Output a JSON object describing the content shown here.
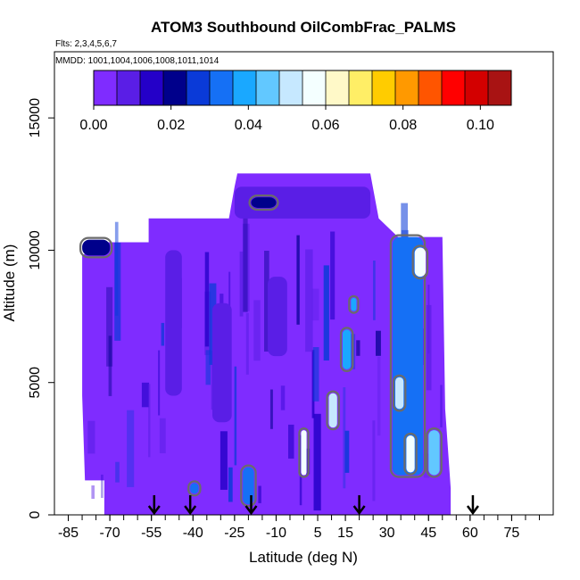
{
  "chart_data": {
    "type": "heatmap",
    "title": "ATOM3 Southbound OilCombFrac_PALMS",
    "flights_label": "Flts: 2,3,4,5,6,7",
    "dates_label": "MMDD: 1001,1004,1006,1008,1011,1014",
    "xlabel": "Latitude (deg N)",
    "ylabel": "Altitude (m)",
    "xlim": [
      -90,
      90
    ],
    "ylim": [
      0,
      17500
    ],
    "xticks": [
      -85,
      -70,
      -55,
      -40,
      -25,
      -10,
      5,
      15,
      30,
      45,
      60,
      75
    ],
    "xtick_labels": [
      "-85",
      "-70",
      "-55",
      "-40",
      "-25",
      "-10",
      "5",
      "15",
      "30",
      "45",
      "60",
      "75"
    ],
    "yticks": [
      0,
      5000,
      10000,
      15000
    ],
    "ytick_labels": [
      "0",
      "5000",
      "10000",
      "15000"
    ],
    "colorbar": {
      "range": [
        0,
        0.108
      ],
      "ticks": [
        0.0,
        0.02,
        0.04,
        0.06,
        0.08,
        0.1
      ],
      "tick_labels": [
        "0.00",
        "0.02",
        "0.04",
        "0.06",
        "0.08",
        "0.10"
      ],
      "colors": [
        "#7f2cff",
        "#5a1ee6",
        "#2400c8",
        "#00008b",
        "#0a3ad8",
        "#1570f5",
        "#1aa8ff",
        "#62c8ff",
        "#c6e8ff",
        "#f4ffff",
        "#fff9c8",
        "#ffee66",
        "#ffcc00",
        "#ff9900",
        "#ff5500",
        "#ff0000",
        "#d30000",
        "#a81313"
      ]
    },
    "flight_markers_lat": [
      -54,
      -41,
      -19,
      20,
      61
    ],
    "background_value": 0.0,
    "data_regions": [
      {
        "name": "upper band",
        "lat": [
          -25,
          24
        ],
        "alt": [
          11200,
          12400
        ],
        "value": 0.008
      },
      {
        "name": "upper core",
        "lat": [
          -19,
          -10
        ],
        "alt": [
          11600,
          12000
        ],
        "value": 0.02
      },
      {
        "name": "mid west patch",
        "lat": [
          -80,
          -70
        ],
        "alt": [
          9800,
          10400
        ],
        "value": 0.02
      },
      {
        "name": "column 1",
        "lat": [
          -50,
          -44
        ],
        "alt": [
          4500,
          10000
        ],
        "value": 0.01
      },
      {
        "name": "column 2",
        "lat": [
          -33,
          -26
        ],
        "alt": [
          3500,
          8000
        ],
        "value": 0.009
      },
      {
        "name": "column 3",
        "lat": [
          -13,
          -6
        ],
        "alt": [
          6000,
          9000
        ],
        "value": 0.01
      },
      {
        "name": "low blob 1",
        "lat": [
          -41,
          -38
        ],
        "alt": [
          800,
          1200
        ],
        "value": 0.03
      },
      {
        "name": "low blob 2",
        "lat": [
          -22,
          -18
        ],
        "alt": [
          400,
          1800
        ],
        "value": 0.032
      },
      {
        "name": "plume 1",
        "lat": [
          -1,
          1
        ],
        "alt": [
          1500,
          3200
        ],
        "value": 0.055
      },
      {
        "name": "plume 2",
        "lat": [
          9,
          12
        ],
        "alt": [
          3300,
          4600
        ],
        "value": 0.05
      },
      {
        "name": "plume 3",
        "lat": [
          14,
          17
        ],
        "alt": [
          5500,
          7000
        ],
        "value": 0.04
      },
      {
        "name": "plume 4",
        "lat": [
          17,
          19
        ],
        "alt": [
          7700,
          8200
        ],
        "value": 0.04
      },
      {
        "name": "north column",
        "lat": [
          32,
          43
        ],
        "alt": [
          1500,
          10500
        ],
        "value": 0.035
      },
      {
        "name": "north high",
        "lat": [
          40,
          44
        ],
        "alt": [
          9000,
          10100
        ],
        "value": 0.055
      },
      {
        "name": "north mid",
        "lat": [
          33,
          36
        ],
        "alt": [
          4000,
          5200
        ],
        "value": 0.05
      },
      {
        "name": "north low",
        "lat": [
          37,
          40
        ],
        "alt": [
          1600,
          3000
        ],
        "value": 0.055
      },
      {
        "name": "north low 2",
        "lat": [
          45,
          49
        ],
        "alt": [
          1500,
          3200
        ],
        "value": 0.045
      }
    ]
  }
}
